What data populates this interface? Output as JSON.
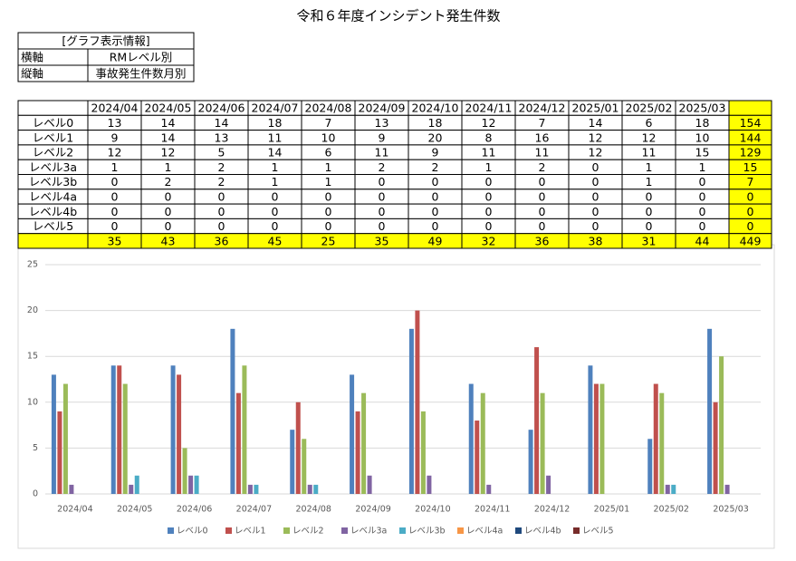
{
  "title": "令和６年度インシデント発生件数",
  "info": {
    "header": "[グラフ表示情報]",
    "rows": [
      [
        "横軸",
        "RMレベル別"
      ],
      [
        "縦軸",
        "事故発生件数月別"
      ]
    ]
  },
  "table": {
    "row_totals": [
      154,
      144,
      129,
      15,
      7,
      0,
      0,
      0
    ],
    "column_totals": [
      35,
      43,
      36,
      45,
      25,
      35,
      49,
      32,
      36,
      38,
      31,
      44
    ],
    "grand_total": 449
  },
  "chart_data": {
    "type": "bar",
    "categories": [
      "2024/04",
      "2024/05",
      "2024/06",
      "2024/07",
      "2024/08",
      "2024/09",
      "2024/10",
      "2024/11",
      "2024/12",
      "2025/01",
      "2025/02",
      "2025/03"
    ],
    "series": [
      {
        "name": "レベル0",
        "color": "#4f81bd",
        "values": [
          13,
          14,
          14,
          18,
          7,
          13,
          18,
          12,
          7,
          14,
          6,
          18
        ]
      },
      {
        "name": "レベル1",
        "color": "#c0504d",
        "values": [
          9,
          14,
          13,
          11,
          10,
          9,
          20,
          8,
          16,
          12,
          12,
          10
        ]
      },
      {
        "name": "レベル2",
        "color": "#9bbb59",
        "values": [
          12,
          12,
          5,
          14,
          6,
          11,
          9,
          11,
          11,
          12,
          11,
          15
        ]
      },
      {
        "name": "レベル3a",
        "color": "#8064a2",
        "values": [
          1,
          1,
          2,
          1,
          1,
          2,
          2,
          1,
          2,
          0,
          1,
          1
        ]
      },
      {
        "name": "レベル3b",
        "color": "#4bacc6",
        "values": [
          0,
          2,
          2,
          1,
          1,
          0,
          0,
          0,
          0,
          0,
          1,
          0
        ]
      },
      {
        "name": "レベル4a",
        "color": "#f79646",
        "values": [
          0,
          0,
          0,
          0,
          0,
          0,
          0,
          0,
          0,
          0,
          0,
          0
        ]
      },
      {
        "name": "レベル4b",
        "color": "#1f497d",
        "values": [
          0,
          0,
          0,
          0,
          0,
          0,
          0,
          0,
          0,
          0,
          0,
          0
        ]
      },
      {
        "name": "レベル5",
        "color": "#772c2a",
        "values": [
          0,
          0,
          0,
          0,
          0,
          0,
          0,
          0,
          0,
          0,
          0,
          0
        ]
      }
    ],
    "ylim": [
      0,
      25
    ],
    "yticks": [
      0,
      5,
      10,
      15,
      20,
      25
    ],
    "grid": true,
    "legend": "bottom"
  }
}
